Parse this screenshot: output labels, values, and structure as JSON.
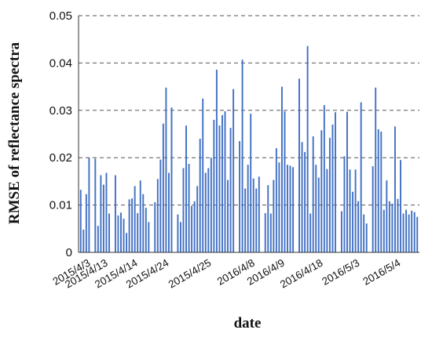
{
  "chart_data": {
    "type": "bar",
    "title": "",
    "xlabel": "date",
    "ylabel": "RMSE of reflectance spectra",
    "ylim": [
      0,
      0.05
    ],
    "yticks": [
      0,
      0.01,
      0.02,
      0.03,
      0.04,
      0.05
    ],
    "ytick_labels": [
      "0",
      "0.01",
      "0.02",
      "0.03",
      "0.04",
      "0.05"
    ],
    "grid": "horizontal-dashed",
    "bar_color": "#4472C4",
    "groups": [
      {
        "label": "2015/4/3",
        "values": [
          0.0132,
          0.0048,
          0.0123,
          0.02
        ]
      },
      {
        "label": "2015/4/13",
        "values": [
          0.0198,
          0.0056,
          0.0163,
          0.0143,
          0.0168,
          0.0082
        ]
      },
      {
        "label": "2015/4/14",
        "values": [
          0.0163,
          0.0078,
          0.0084,
          0.0071,
          0.0041,
          0.0112,
          0.0114,
          0.014,
          0.0083,
          0.0152,
          0.0123,
          0.0094,
          0.0064
        ]
      },
      {
        "label": "2015/4/24",
        "values": [
          0.0106,
          0.0155,
          0.0196,
          0.0272,
          0.0348,
          0.0168,
          0.0306
        ]
      },
      {
        "label": "2015/4/25",
        "values": [
          0.008,
          0.0064,
          0.0178,
          0.0268,
          0.0187,
          0.0098,
          0.0108,
          0.014,
          0.024,
          0.0325,
          0.0168,
          0.0178,
          0.02,
          0.028,
          0.0386,
          0.0268,
          0.029,
          0.0298,
          0.0153,
          0.0263,
          0.0345
        ]
      },
      {
        "label": "2016/4/8",
        "values": [
          0.0235,
          0.0407,
          0.0135,
          0.0185,
          0.0293,
          0.0156,
          0.0135,
          0.016
        ]
      },
      {
        "label": "2016/4/9",
        "values": [
          0.0083,
          0.0142,
          0.0082,
          0.0153,
          0.022,
          0.019,
          0.035,
          0.0298,
          0.0185,
          0.0183,
          0.018
        ]
      },
      {
        "label": "2016/4/18",
        "values": [
          0.0367,
          0.0233,
          0.0212,
          0.0436,
          0.0082,
          0.0245,
          0.0185,
          0.0158,
          0.0258,
          0.0311,
          0.0176,
          0.0242,
          0.027,
          0.0296
        ]
      },
      {
        "label": "2016/5/3",
        "values": [
          0.0087,
          0.0203,
          0.0297,
          0.0175,
          0.0128,
          0.0175,
          0.0108,
          0.0317,
          0.008,
          0.0061
        ]
      },
      {
        "label": "2016/5/4",
        "values": [
          0.0182,
          0.0348,
          0.026,
          0.0255,
          0.009,
          0.0152,
          0.0108,
          0.0103,
          0.0266,
          0.0113,
          0.0195,
          0.0082,
          0.009,
          0.008,
          0.0088,
          0.0085,
          0.0075
        ]
      }
    ]
  }
}
